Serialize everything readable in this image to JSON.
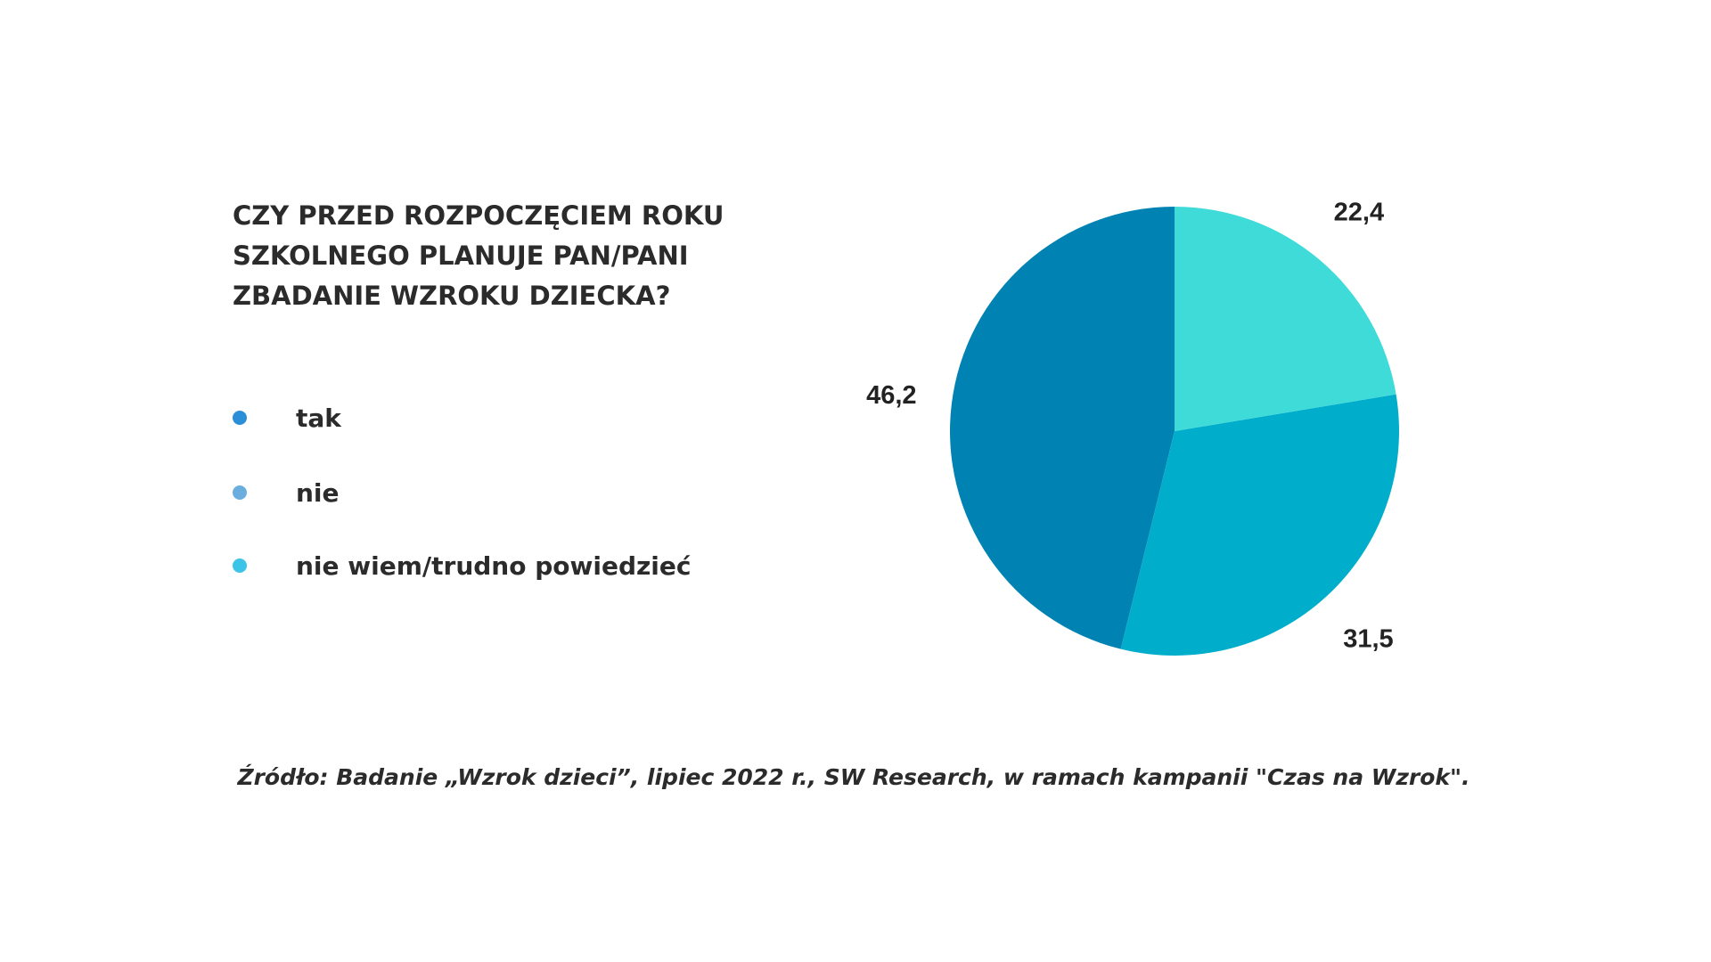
{
  "chart_data": {
    "type": "pie",
    "title": [
      "CZY PRZED ROZPOCZĘCIEM ROKU",
      "SZKOLNEGO PLANUJE PAN/PANI",
      "ZBADANIE WZROKU DZIECKA?"
    ],
    "categories": [
      "tak",
      "nie",
      "nie wiem/trudno powiedzieć"
    ],
    "values": [
      46.2,
      31.5,
      22.4
    ],
    "value_labels": [
      "46,2",
      "31,5",
      "22,4"
    ],
    "colors": [
      "#0083b3",
      "#00aecb",
      "#3fdbd8"
    ],
    "legend_colors": [
      "#2a8fd6",
      "#6aaee0",
      "#3cc4e8"
    ],
    "direction": "counterclockwise",
    "source": "Źródło: Badanie „Wzrok dzieci”, lipiec 2022 r., SW Research, w ramach kampanii \"Czas na Wzrok\"."
  }
}
